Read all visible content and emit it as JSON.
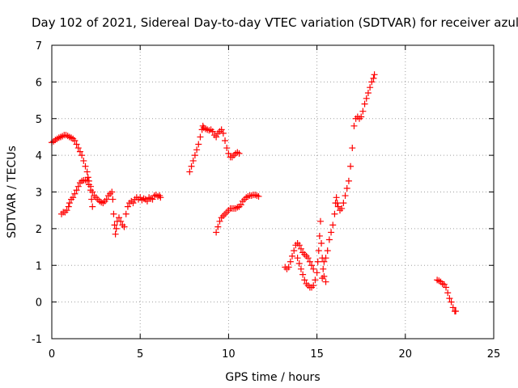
{
  "chart_data": {
    "type": "scatter",
    "title": "Day 102 of 2021, Sidereal Day-to-day VTEC variation (SDTVAR) for receiver azul",
    "xlabel": "GPS time / hours",
    "ylabel": "SDTVAR / TECUs",
    "xlim": [
      0,
      25
    ],
    "ylim": [
      -1,
      7
    ],
    "xticks": [
      0,
      5,
      10,
      15,
      20,
      25
    ],
    "yticks": [
      -1,
      0,
      1,
      2,
      3,
      4,
      5,
      6,
      7
    ],
    "grid": true,
    "marker": "+",
    "color": "#ff0000",
    "series": [
      {
        "points": [
          [
            0.0,
            4.35
          ],
          [
            0.1,
            4.38
          ],
          [
            0.2,
            4.42
          ],
          [
            0.3,
            4.45
          ],
          [
            0.4,
            4.48
          ],
          [
            0.5,
            4.5
          ],
          [
            0.6,
            4.52
          ],
          [
            0.7,
            4.55
          ],
          [
            0.8,
            4.55
          ],
          [
            0.9,
            4.53
          ],
          [
            1.0,
            4.5
          ],
          [
            1.1,
            4.48
          ],
          [
            1.2,
            4.45
          ],
          [
            1.3,
            4.4
          ],
          [
            1.4,
            4.3
          ],
          [
            1.5,
            4.2
          ],
          [
            1.6,
            4.1
          ],
          [
            1.7,
            4.0
          ],
          [
            1.8,
            3.85
          ],
          [
            1.9,
            3.7
          ],
          [
            2.0,
            3.55
          ],
          [
            2.05,
            3.4
          ],
          [
            2.1,
            3.3
          ],
          [
            2.2,
            3.15
          ],
          [
            2.3,
            3.0
          ],
          [
            2.4,
            2.9
          ],
          [
            2.5,
            2.85
          ],
          [
            2.6,
            2.8
          ],
          [
            2.7,
            2.75
          ],
          [
            2.8,
            2.72
          ],
          [
            2.9,
            2.7
          ],
          [
            3.0,
            2.75
          ],
          [
            3.1,
            2.8
          ],
          [
            3.2,
            2.9
          ],
          [
            3.3,
            2.95
          ],
          [
            3.4,
            3.0
          ],
          [
            3.45,
            2.8
          ],
          [
            3.5,
            2.4
          ],
          [
            3.55,
            2.1
          ],
          [
            3.6,
            1.85
          ],
          [
            3.65,
            2.0
          ],
          [
            3.7,
            2.2
          ],
          [
            3.8,
            2.3
          ],
          [
            3.9,
            2.2
          ],
          [
            4.0,
            2.1
          ],
          [
            4.1,
            2.05
          ],
          [
            4.2,
            2.4
          ],
          [
            4.3,
            2.6
          ],
          [
            4.4,
            2.7
          ],
          [
            4.5,
            2.75
          ],
          [
            4.6,
            2.7
          ],
          [
            4.7,
            2.8
          ],
          [
            4.8,
            2.85
          ],
          [
            4.9,
            2.8
          ],
          [
            5.0,
            2.85
          ],
          [
            5.1,
            2.78
          ],
          [
            5.2,
            2.82
          ],
          [
            5.3,
            2.8
          ],
          [
            5.4,
            2.75
          ],
          [
            5.5,
            2.85
          ],
          [
            5.6,
            2.82
          ],
          [
            5.7,
            2.8
          ],
          [
            5.8,
            2.9
          ],
          [
            5.9,
            2.92
          ],
          [
            6.0,
            2.88
          ],
          [
            6.1,
            2.9
          ],
          [
            6.15,
            2.85
          ]
        ]
      },
      {
        "points": [
          [
            0.55,
            2.4
          ],
          [
            0.65,
            2.45
          ],
          [
            0.75,
            2.45
          ],
          [
            0.85,
            2.5
          ],
          [
            0.95,
            2.6
          ],
          [
            1.0,
            2.7
          ],
          [
            1.1,
            2.8
          ],
          [
            1.2,
            2.85
          ],
          [
            1.3,
            2.95
          ],
          [
            1.4,
            3.05
          ],
          [
            1.5,
            3.15
          ],
          [
            1.6,
            3.25
          ],
          [
            1.7,
            3.3
          ],
          [
            1.8,
            3.32
          ],
          [
            1.9,
            3.32
          ],
          [
            2.0,
            3.3
          ],
          [
            2.1,
            3.2
          ],
          [
            2.2,
            3.05
          ],
          [
            2.25,
            2.8
          ],
          [
            2.3,
            2.6
          ]
        ]
      },
      {
        "points": [
          [
            7.8,
            3.55
          ],
          [
            7.9,
            3.7
          ],
          [
            8.0,
            3.85
          ],
          [
            8.1,
            4.0
          ],
          [
            8.2,
            4.15
          ],
          [
            8.3,
            4.3
          ],
          [
            8.4,
            4.5
          ],
          [
            8.5,
            4.7
          ],
          [
            8.55,
            4.8
          ],
          [
            8.6,
            4.75
          ],
          [
            8.7,
            4.72
          ],
          [
            8.8,
            4.7
          ],
          [
            8.9,
            4.68
          ],
          [
            9.0,
            4.7
          ],
          [
            9.1,
            4.65
          ],
          [
            9.2,
            4.55
          ],
          [
            9.3,
            4.5
          ],
          [
            9.4,
            4.6
          ],
          [
            9.5,
            4.65
          ],
          [
            9.6,
            4.7
          ],
          [
            9.7,
            4.6
          ],
          [
            9.8,
            4.4
          ],
          [
            9.9,
            4.2
          ],
          [
            10.0,
            4.05
          ],
          [
            10.1,
            3.95
          ],
          [
            10.2,
            3.95
          ],
          [
            10.3,
            4.0
          ],
          [
            10.4,
            4.05
          ],
          [
            10.5,
            4.08
          ],
          [
            10.6,
            4.05
          ]
        ]
      },
      {
        "points": [
          [
            9.3,
            1.9
          ],
          [
            9.4,
            2.05
          ],
          [
            9.5,
            2.2
          ],
          [
            9.6,
            2.3
          ],
          [
            9.7,
            2.35
          ],
          [
            9.8,
            2.4
          ],
          [
            9.9,
            2.45
          ],
          [
            10.0,
            2.5
          ],
          [
            10.1,
            2.55
          ],
          [
            10.2,
            2.55
          ],
          [
            10.3,
            2.55
          ],
          [
            10.4,
            2.55
          ],
          [
            10.5,
            2.58
          ],
          [
            10.6,
            2.6
          ],
          [
            10.7,
            2.65
          ],
          [
            10.8,
            2.75
          ],
          [
            10.9,
            2.8
          ],
          [
            11.0,
            2.85
          ],
          [
            11.1,
            2.88
          ],
          [
            11.2,
            2.9
          ],
          [
            11.3,
            2.9
          ],
          [
            11.4,
            2.92
          ],
          [
            11.5,
            2.92
          ],
          [
            11.6,
            2.9
          ],
          [
            11.7,
            2.88
          ]
        ]
      },
      {
        "points": [
          [
            13.2,
            0.95
          ],
          [
            13.3,
            0.9
          ],
          [
            13.4,
            0.95
          ],
          [
            13.5,
            1.1
          ],
          [
            13.6,
            1.25
          ],
          [
            13.7,
            1.4
          ],
          [
            13.8,
            1.55
          ],
          [
            13.9,
            1.6
          ],
          [
            14.0,
            1.55
          ],
          [
            14.1,
            1.45
          ],
          [
            14.2,
            1.35
          ],
          [
            14.3,
            1.3
          ],
          [
            14.4,
            1.25
          ],
          [
            14.5,
            1.2
          ],
          [
            14.6,
            1.1
          ],
          [
            14.7,
            1.0
          ],
          [
            14.8,
            0.9
          ]
        ]
      },
      {
        "points": [
          [
            13.9,
            1.2
          ],
          [
            14.0,
            1.05
          ],
          [
            14.1,
            0.9
          ],
          [
            14.2,
            0.75
          ],
          [
            14.3,
            0.6
          ],
          [
            14.4,
            0.5
          ],
          [
            14.5,
            0.45
          ],
          [
            14.6,
            0.4
          ],
          [
            14.7,
            0.4
          ],
          [
            14.8,
            0.45
          ],
          [
            14.9,
            0.6
          ],
          [
            15.0,
            0.8
          ],
          [
            15.05,
            1.1
          ],
          [
            15.1,
            1.4
          ],
          [
            15.15,
            1.8
          ],
          [
            15.2,
            2.2
          ],
          [
            15.25,
            1.6
          ],
          [
            15.3,
            1.2
          ],
          [
            15.4,
            1.1
          ],
          [
            15.5,
            1.2
          ],
          [
            15.6,
            1.4
          ],
          [
            15.7,
            1.7
          ],
          [
            15.8,
            1.9
          ],
          [
            15.9,
            2.1
          ],
          [
            16.0,
            2.4
          ],
          [
            16.05,
            2.7
          ],
          [
            16.1,
            2.85
          ],
          [
            16.15,
            2.7
          ],
          [
            16.2,
            2.6
          ],
          [
            16.3,
            2.5
          ],
          [
            16.4,
            2.55
          ],
          [
            16.5,
            2.7
          ],
          [
            16.6,
            2.9
          ],
          [
            16.7,
            3.1
          ],
          [
            16.8,
            3.3
          ],
          [
            16.9,
            3.7
          ],
          [
            17.0,
            4.2
          ],
          [
            17.1,
            4.8
          ],
          [
            17.2,
            5.0
          ],
          [
            17.3,
            5.05
          ],
          [
            17.4,
            5.0
          ],
          [
            17.5,
            5.05
          ],
          [
            17.6,
            5.2
          ],
          [
            17.7,
            5.4
          ],
          [
            17.8,
            5.55
          ],
          [
            17.9,
            5.7
          ],
          [
            18.0,
            5.85
          ],
          [
            18.1,
            6.0
          ],
          [
            18.2,
            6.1
          ],
          [
            18.25,
            6.2
          ]
        ]
      },
      {
        "points": [
          [
            15.3,
            0.65
          ],
          [
            15.35,
            0.9
          ],
          [
            15.4,
            0.7
          ],
          [
            15.5,
            0.55
          ]
        ]
      },
      {
        "points": [
          [
            21.8,
            0.6
          ],
          [
            21.9,
            0.58
          ],
          [
            22.0,
            0.55
          ],
          [
            22.1,
            0.5
          ],
          [
            22.2,
            0.48
          ],
          [
            22.3,
            0.4
          ],
          [
            22.4,
            0.25
          ],
          [
            22.5,
            0.1
          ],
          [
            22.6,
            0.0
          ],
          [
            22.7,
            -0.15
          ],
          [
            22.8,
            -0.25
          ],
          [
            22.85,
            -0.25
          ]
        ]
      }
    ]
  }
}
